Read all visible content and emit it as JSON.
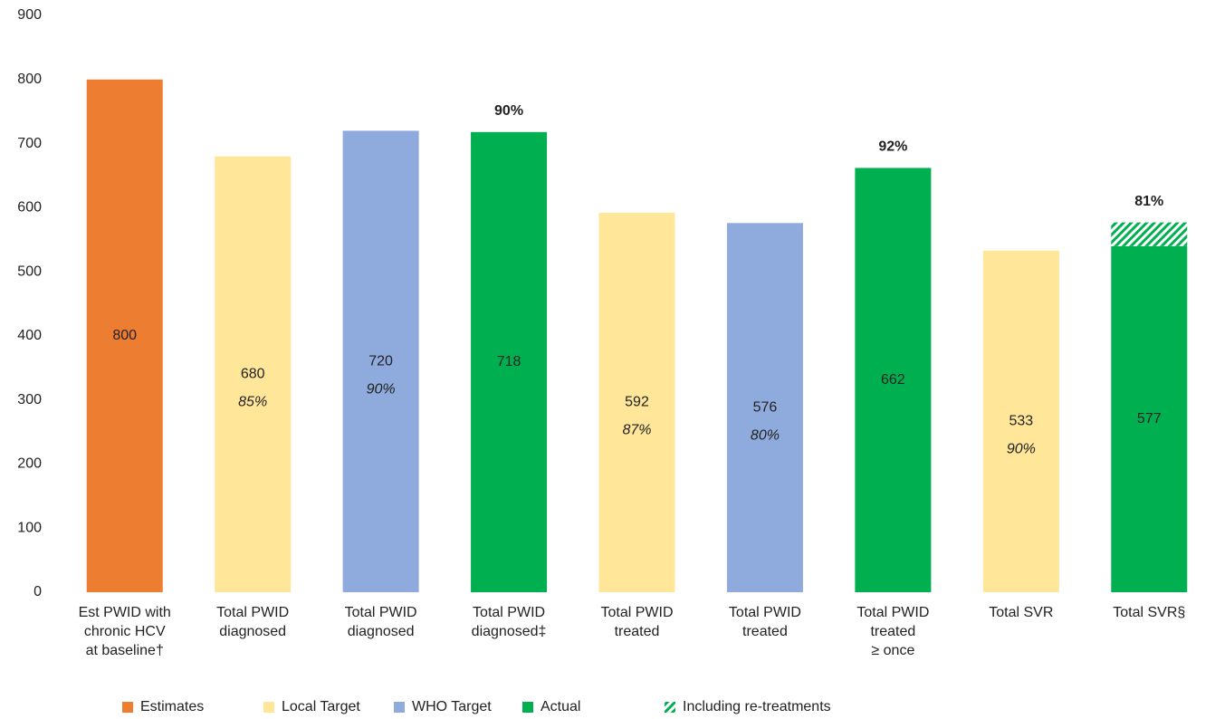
{
  "chart_data": {
    "type": "bar",
    "stacked": true,
    "categories": [
      "Est PWID with\nchronic HCV\nat baseline†",
      "Total PWID\ndiagnosed",
      "Total PWID\ndiagnosed",
      "Total PWID\ndiagnosed‡",
      "Total PWID\ntreated",
      "Total PWID\ntreated",
      "Total PWID\ntreated\n≥ once",
      "Total SVR",
      "Total SVR§"
    ],
    "series": [
      {
        "name": "Estimates",
        "color": "#ed7d31",
        "values": [
          800,
          null,
          null,
          null,
          null,
          null,
          null,
          null,
          null
        ]
      },
      {
        "name": "Local Target",
        "color": "#ffe699",
        "values": [
          null,
          680,
          null,
          null,
          592,
          null,
          null,
          533,
          null
        ]
      },
      {
        "name": "WHO Target",
        "color": "#8faadc",
        "values": [
          null,
          null,
          720,
          null,
          null,
          576,
          null,
          null,
          null
        ]
      },
      {
        "name": "Actual",
        "color": "#00b050",
        "values": [
          null,
          null,
          null,
          718,
          null,
          null,
          662,
          null,
          540
        ]
      },
      {
        "name": "Including re-treatments",
        "color": "#00b050",
        "hatched": true,
        "values": [
          null,
          null,
          null,
          null,
          null,
          null,
          null,
          null,
          37
        ]
      }
    ],
    "bar_labels": [
      800,
      680,
      720,
      718,
      592,
      576,
      662,
      533,
      577
    ],
    "percent_labels": [
      null,
      "85%",
      "90%",
      null,
      "87%",
      "80%",
      null,
      "90%",
      null
    ],
    "top_labels": [
      null,
      null,
      null,
      "90%",
      null,
      null,
      "92%",
      null,
      "81%"
    ],
    "ylim": [
      0,
      900
    ],
    "yticks": [
      0,
      100,
      200,
      300,
      400,
      500,
      600,
      700,
      800,
      900
    ],
    "grid": false
  }
}
